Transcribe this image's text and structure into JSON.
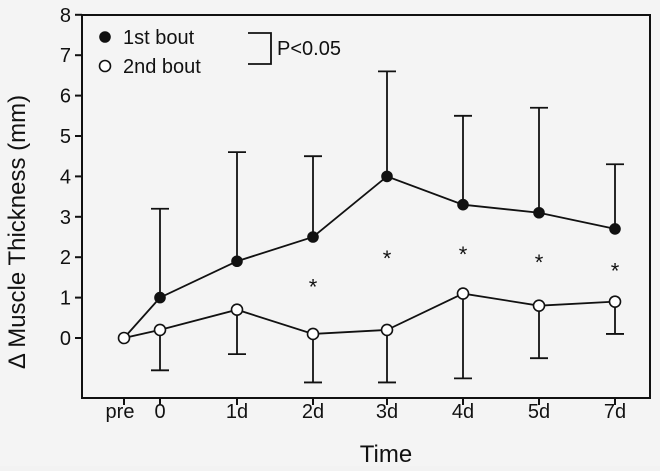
{
  "chart_data": {
    "type": "line",
    "ylabel": "Δ Muscle Thickness (mm)",
    "xlabel": "Time",
    "categories": [
      "pre",
      "0",
      "1d",
      "2d",
      "3d",
      "4d",
      "5d",
      "7d"
    ],
    "ylim": [
      -1.1,
      8
    ],
    "yticks": [
      0,
      1,
      2,
      3,
      4,
      5,
      6,
      7,
      8
    ],
    "grid": false,
    "legend": {
      "placement": "top-left",
      "annotation": "P<0.05"
    },
    "series": [
      {
        "name": "1st bout",
        "marker": "filled-circle",
        "values": [
          0,
          1.0,
          1.9,
          2.5,
          4.0,
          3.3,
          3.1,
          2.7
        ],
        "error_upper": [
          null,
          3.2,
          4.6,
          4.5,
          6.6,
          5.5,
          5.7,
          4.3
        ]
      },
      {
        "name": "2nd bout",
        "marker": "open-circle",
        "values": [
          0,
          0.2,
          0.7,
          0.1,
          0.2,
          1.1,
          0.8,
          0.9
        ],
        "error_lower": [
          null,
          -0.8,
          -0.4,
          -1.1,
          -1.1,
          -1.0,
          -0.5,
          0.1
        ]
      }
    ],
    "significance_markers": [
      {
        "category": "2d",
        "label": "*",
        "y": 1.3
      },
      {
        "category": "3d",
        "label": "*",
        "y": 2.0
      },
      {
        "category": "4d",
        "label": "*",
        "y": 2.1
      },
      {
        "category": "5d",
        "label": "*",
        "y": 1.9
      },
      {
        "category": "7d",
        "label": "*",
        "y": 1.7
      }
    ],
    "colors": {
      "line": "#111111",
      "background": "#f4f4f4"
    }
  }
}
